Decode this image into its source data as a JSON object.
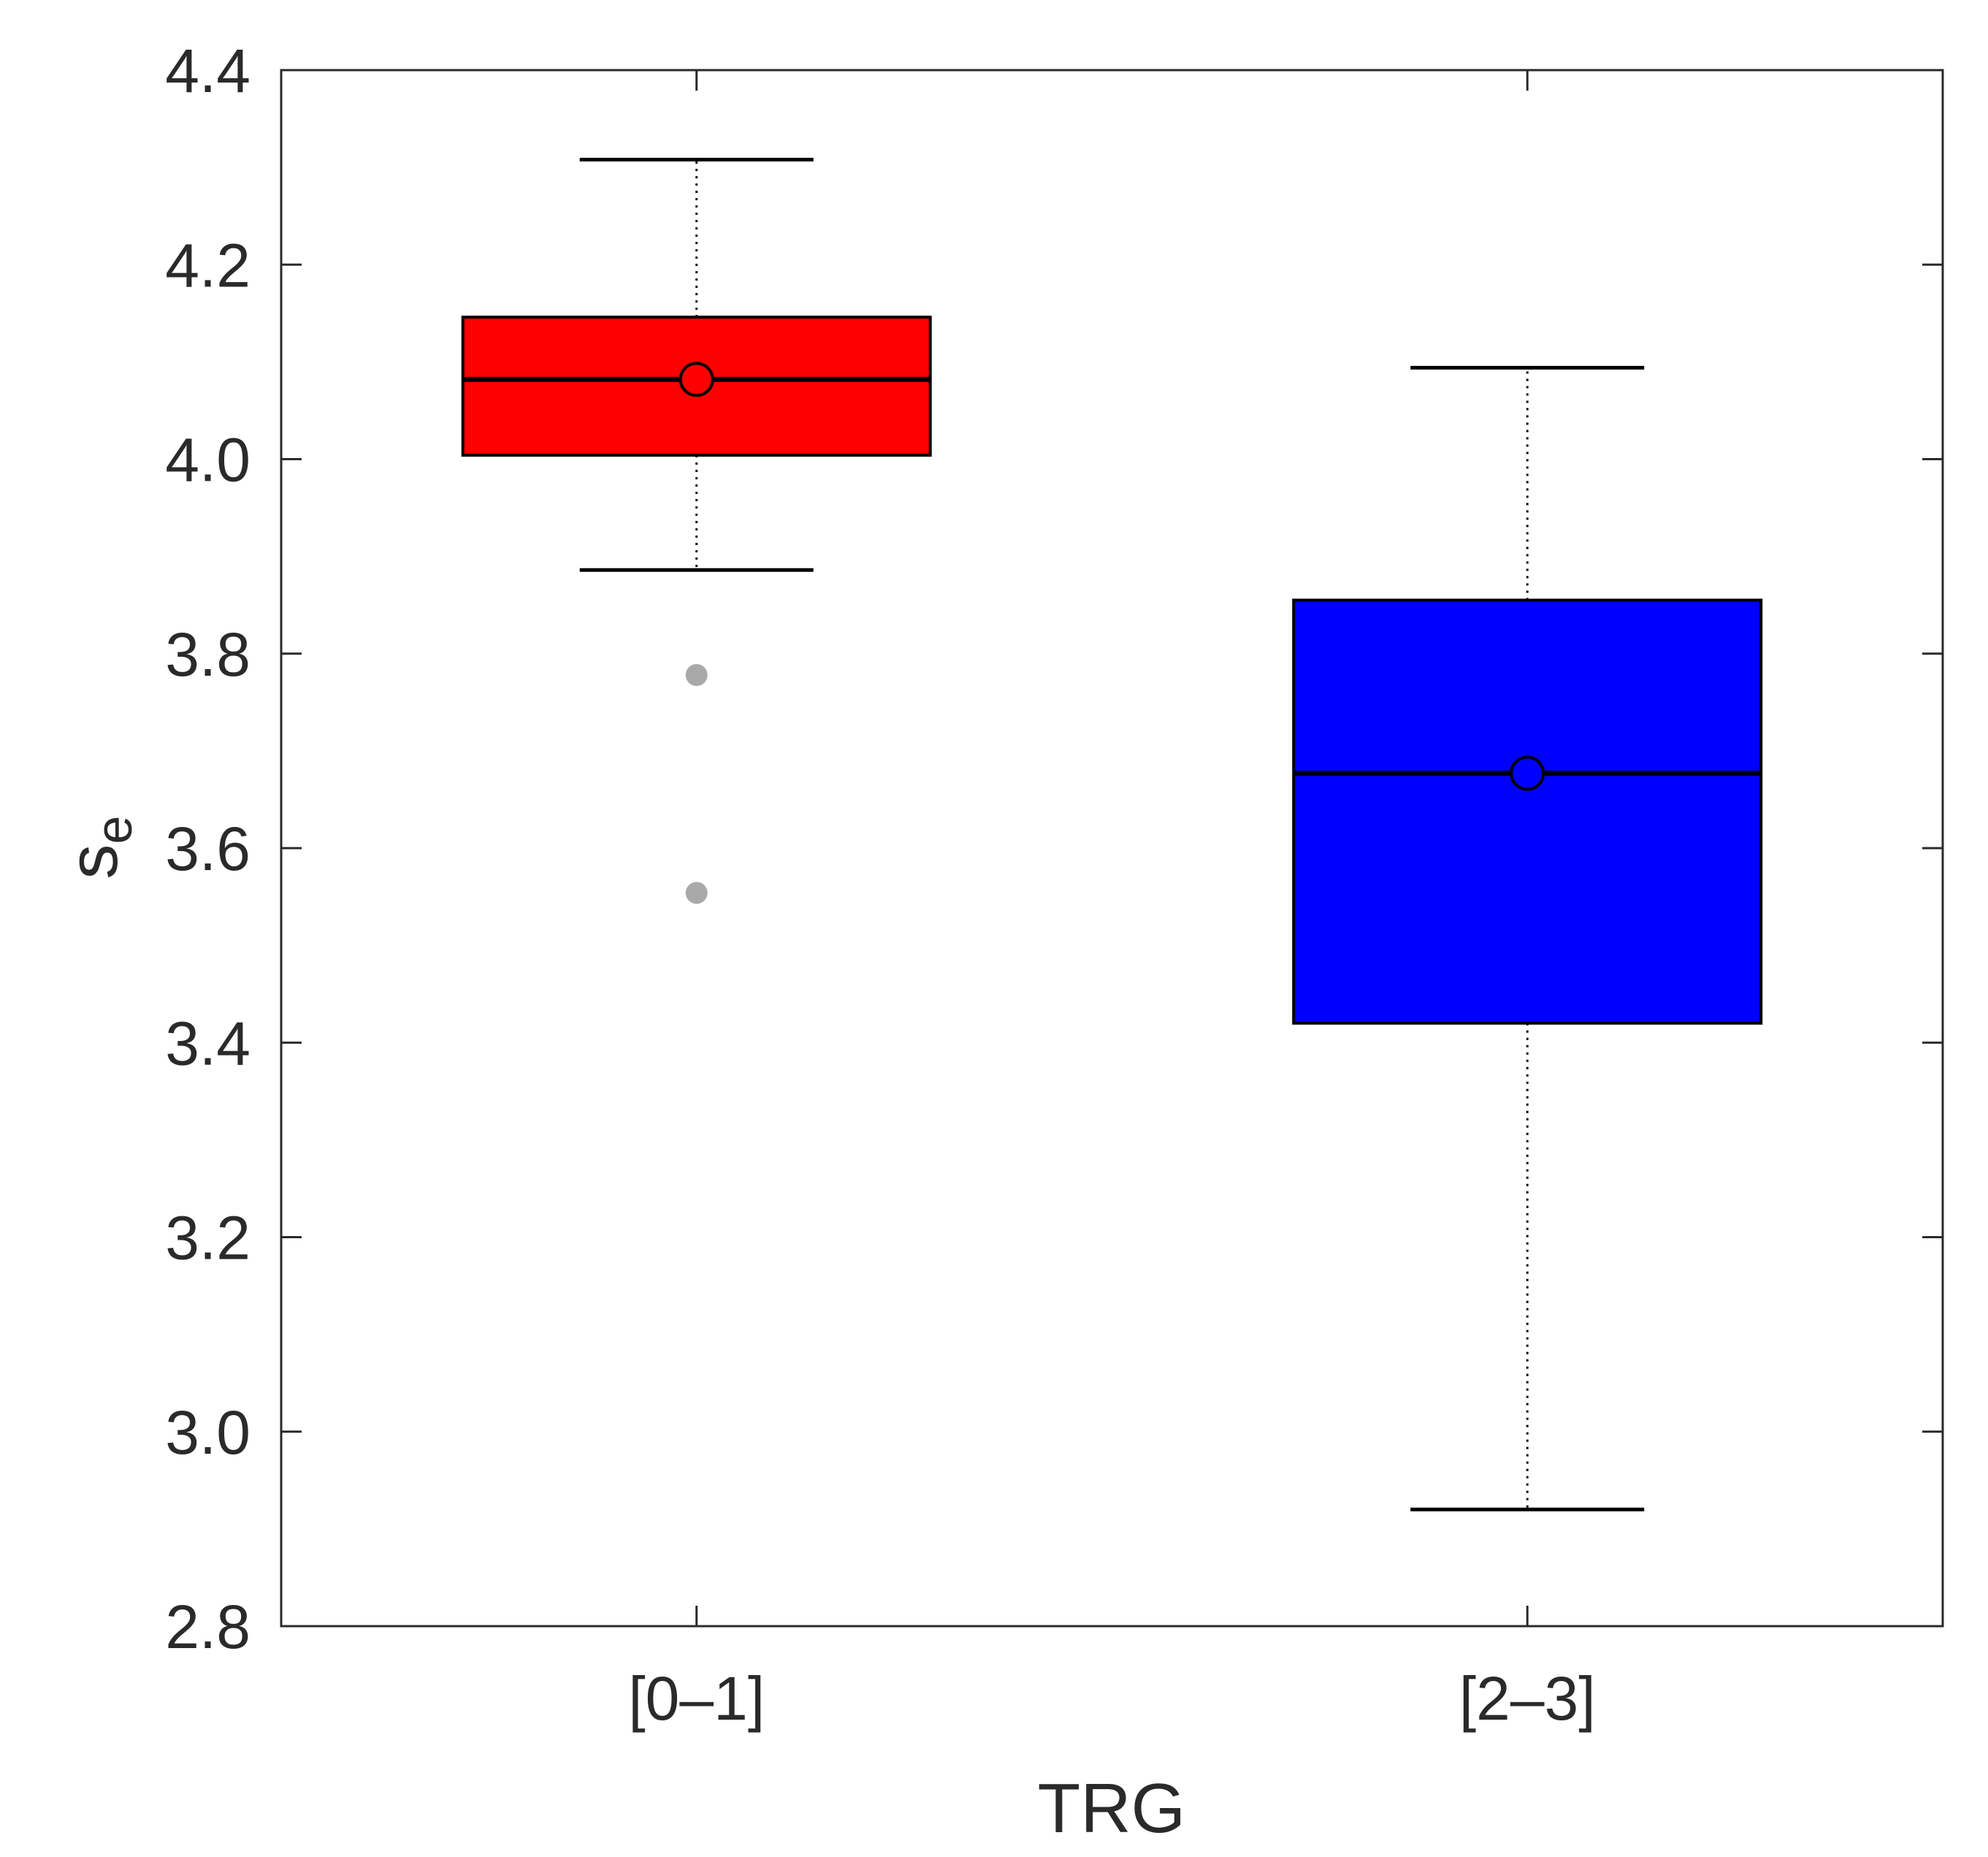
{
  "chart_data": {
    "type": "box",
    "xlabel": "TRG",
    "ylabel": "s",
    "ylabel_subscript": "e",
    "ylim": [
      2.8,
      4.4
    ],
    "yticks": [
      2.8,
      3.0,
      3.2,
      3.4,
      3.6,
      3.8,
      4.0,
      4.2,
      4.4
    ],
    "ytick_labels": [
      "2.8",
      "3.0",
      "3.2",
      "3.4",
      "3.6",
      "3.8",
      "4.0",
      "4.2",
      "4.4"
    ],
    "grid": false,
    "categories": [
      "[0–1]",
      "[2–3]"
    ],
    "boxes": [
      {
        "category": "[0–1]",
        "whisker_low": 3.886,
        "q1": 4.004,
        "median": 4.082,
        "mean": 4.082,
        "q3": 4.146,
        "whisker_high": 4.308,
        "outliers": [
          3.778,
          3.554
        ],
        "color": "#ff0000"
      },
      {
        "category": "[2–3]",
        "whisker_low": 2.92,
        "q1": 3.42,
        "median": 3.677,
        "mean": 3.677,
        "q3": 3.855,
        "whisker_high": 4.094,
        "outliers": [],
        "color": "#0000ff"
      }
    ],
    "outlier_color": "#a9a9a9"
  }
}
